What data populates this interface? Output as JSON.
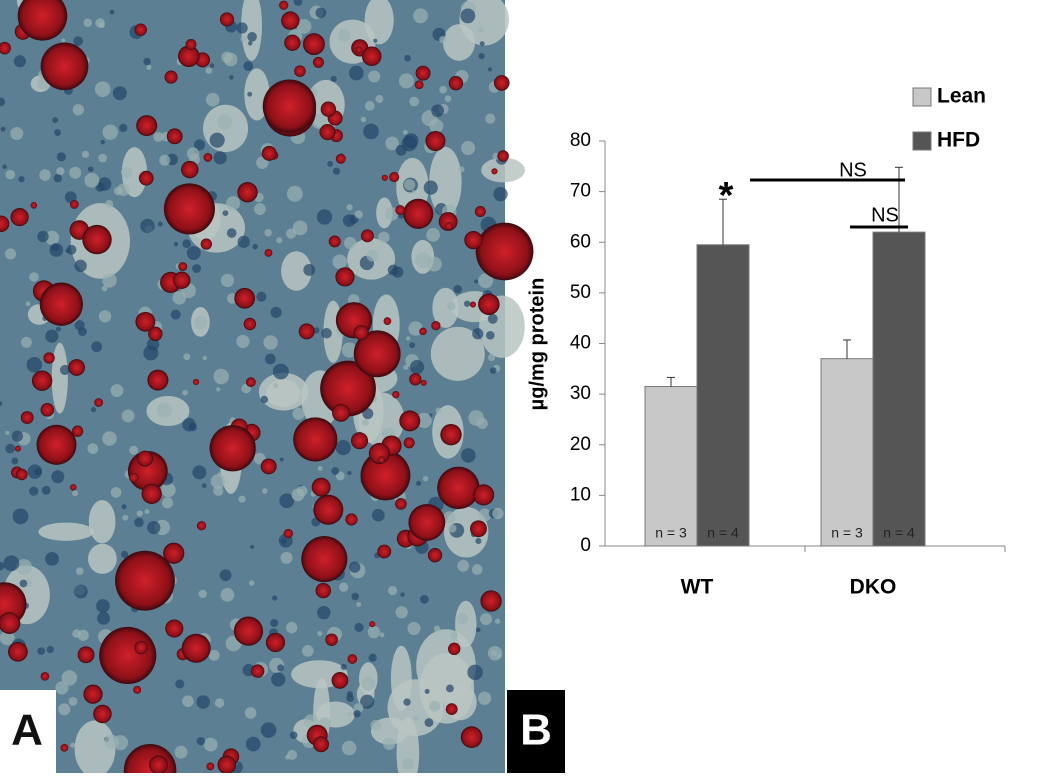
{
  "panels": [
    "A",
    "B"
  ],
  "chart_data": {
    "type": "bar",
    "ylabel": "µg/mg protein",
    "categories": [
      "WT",
      "DKO"
    ],
    "series": [
      {
        "name": "Lean",
        "color": "#c8c8c8",
        "values": [
          31.5,
          37
        ],
        "errors": [
          1.8,
          3.7
        ],
        "n_labels": [
          "n = 3",
          "n = 3"
        ]
      },
      {
        "name": "HFD",
        "color": "#555555",
        "values": [
          59.5,
          62
        ],
        "errors": [
          9,
          12.8
        ],
        "n_labels": [
          "n = 4",
          "n = 4"
        ]
      }
    ],
    "annotations": [
      "*",
      "NS",
      "NS"
    ],
    "ylim": [
      0,
      80
    ],
    "yticks": [
      0,
      10,
      20,
      30,
      40,
      50,
      60,
      70,
      80
    ],
    "legend": "top-right"
  }
}
